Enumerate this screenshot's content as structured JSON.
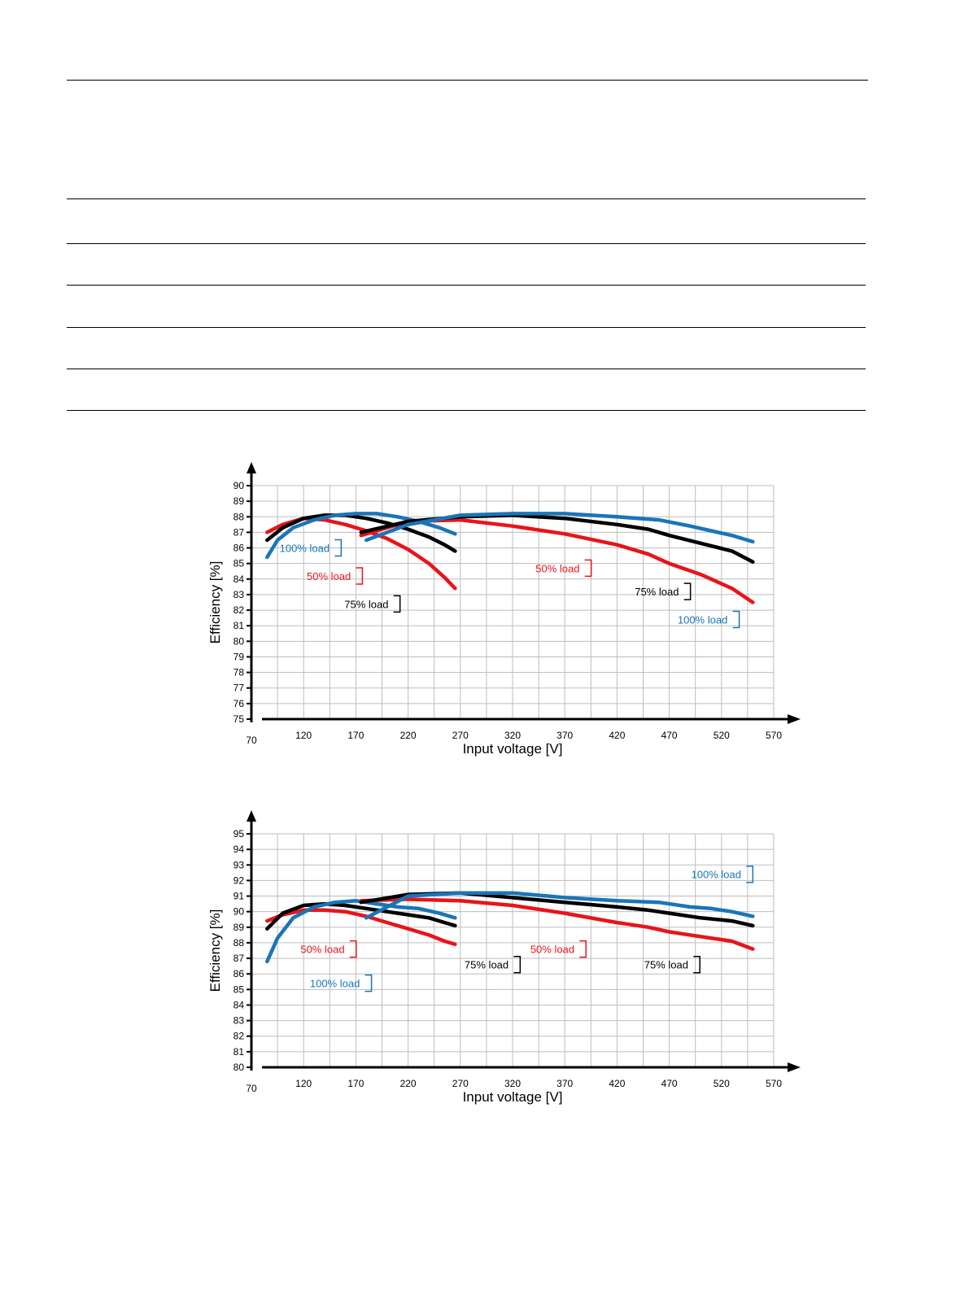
{
  "chart_data": [
    {
      "type": "line",
      "title": "",
      "xlabel": "Input voltage [V]",
      "ylabel": "Efficiency [%]",
      "xlim": [
        70,
        570
      ],
      "ylim": [
        75,
        90
      ],
      "x_ticks": [
        70,
        120,
        170,
        220,
        270,
        320,
        370,
        420,
        470,
        520,
        570
      ],
      "y_ticks": [
        75,
        76,
        77,
        78,
        79,
        80,
        81,
        82,
        83,
        84,
        85,
        86,
        87,
        88,
        89,
        90
      ],
      "grid": true,
      "colors": {
        "red": "#e8141b",
        "black": "#000000",
        "blue": "#1a75b8"
      },
      "series": [
        {
          "color": "red",
          "x": [
            85,
            100,
            120,
            140,
            160,
            180,
            200,
            220,
            240,
            255,
            265
          ],
          "y": [
            87.0,
            87.5,
            87.9,
            87.8,
            87.5,
            87.1,
            86.6,
            85.9,
            85.0,
            84.1,
            83.4
          ]
        },
        {
          "color": "black",
          "x": [
            85,
            100,
            120,
            140,
            160,
            180,
            200,
            220,
            240,
            255,
            265
          ],
          "y": [
            86.5,
            87.3,
            87.9,
            88.1,
            88.1,
            87.9,
            87.6,
            87.2,
            86.7,
            86.2,
            85.8
          ]
        },
        {
          "color": "blue",
          "x": [
            85,
            95,
            110,
            130,
            150,
            170,
            190,
            210,
            230,
            250,
            265
          ],
          "y": [
            85.4,
            86.5,
            87.3,
            87.8,
            88.1,
            88.2,
            88.2,
            88.0,
            87.7,
            87.3,
            86.9
          ]
        },
        {
          "color": "red",
          "x": [
            175,
            220,
            270,
            320,
            370,
            420,
            450,
            470,
            500,
            530,
            550
          ],
          "y": [
            86.8,
            87.7,
            87.8,
            87.4,
            86.9,
            86.2,
            85.6,
            85.0,
            84.3,
            83.4,
            82.5
          ]
        },
        {
          "color": "black",
          "x": [
            175,
            220,
            270,
            320,
            370,
            420,
            450,
            470,
            500,
            530,
            550
          ],
          "y": [
            87.0,
            87.7,
            88.0,
            88.1,
            87.9,
            87.5,
            87.2,
            86.8,
            86.3,
            85.8,
            85.1
          ]
        },
        {
          "color": "blue",
          "x": [
            180,
            220,
            270,
            320,
            370,
            420,
            460,
            490,
            510,
            530,
            550
          ],
          "y": [
            86.5,
            87.5,
            88.1,
            88.2,
            88.2,
            88.0,
            87.8,
            87.4,
            87.1,
            86.8,
            86.4
          ]
        }
      ],
      "annotations": [
        {
          "text": "100% load",
          "color": "blue",
          "x": 97,
          "y": 86.0
        },
        {
          "text": "50% load",
          "color": "red",
          "x": 123,
          "y": 84.2
        },
        {
          "text": "75% load",
          "color": "black",
          "x": 159,
          "y": 82.4
        },
        {
          "text": "50% load",
          "color": "red",
          "x": 342,
          "y": 84.7
        },
        {
          "text": "75% load",
          "color": "black",
          "x": 437,
          "y": 83.2
        },
        {
          "text": "100% load",
          "color": "blue",
          "x": 478,
          "y": 81.4
        }
      ]
    },
    {
      "type": "line",
      "title": "",
      "xlabel": "Input voltage [V]",
      "ylabel": "Efficiency [%]",
      "xlim": [
        70,
        570
      ],
      "ylim": [
        80,
        95
      ],
      "x_ticks": [
        70,
        120,
        170,
        220,
        270,
        320,
        370,
        420,
        470,
        520,
        570
      ],
      "y_ticks": [
        80,
        81,
        82,
        83,
        84,
        85,
        86,
        87,
        88,
        89,
        90,
        91,
        92,
        93,
        94,
        95
      ],
      "grid": true,
      "colors": {
        "red": "#e8141b",
        "black": "#000000",
        "blue": "#1a75b8"
      },
      "series": [
        {
          "color": "red",
          "x": [
            85,
            100,
            120,
            140,
            160,
            180,
            200,
            220,
            240,
            255,
            265
          ],
          "y": [
            89.4,
            89.8,
            90.1,
            90.1,
            90.0,
            89.7,
            89.3,
            88.9,
            88.5,
            88.1,
            87.9
          ]
        },
        {
          "color": "black",
          "x": [
            85,
            100,
            120,
            140,
            160,
            180,
            200,
            220,
            240,
            255,
            265
          ],
          "y": [
            88.9,
            89.9,
            90.4,
            90.5,
            90.4,
            90.2,
            90.0,
            89.8,
            89.6,
            89.3,
            89.1
          ]
        },
        {
          "color": "blue",
          "x": [
            85,
            95,
            110,
            130,
            150,
            170,
            190,
            210,
            230,
            250,
            265
          ],
          "y": [
            86.8,
            88.3,
            89.6,
            90.3,
            90.6,
            90.7,
            90.5,
            90.3,
            90.2,
            89.9,
            89.6
          ]
        },
        {
          "color": "red",
          "x": [
            175,
            220,
            270,
            320,
            370,
            420,
            450,
            470,
            500,
            530,
            550
          ],
          "y": [
            90.7,
            90.8,
            90.7,
            90.4,
            89.9,
            89.3,
            89.0,
            88.7,
            88.4,
            88.1,
            87.6
          ]
        },
        {
          "color": "black",
          "x": [
            175,
            220,
            270,
            320,
            370,
            420,
            450,
            470,
            500,
            530,
            550
          ],
          "y": [
            90.6,
            91.1,
            91.2,
            90.9,
            90.6,
            90.3,
            90.1,
            89.9,
            89.6,
            89.4,
            89.1
          ]
        },
        {
          "color": "blue",
          "x": [
            180,
            220,
            270,
            320,
            370,
            420,
            460,
            490,
            510,
            530,
            550
          ],
          "y": [
            89.6,
            91.0,
            91.2,
            91.2,
            90.9,
            90.7,
            90.6,
            90.3,
            90.2,
            90.0,
            89.7
          ]
        }
      ],
      "annotations": [
        {
          "text": "50% load",
          "color": "red",
          "x": 117,
          "y": 87.6
        },
        {
          "text": "100% load",
          "color": "blue",
          "x": 126,
          "y": 85.4
        },
        {
          "text": "75% load",
          "color": "black",
          "x": 274,
          "y": 86.6
        },
        {
          "text": "50% load",
          "color": "red",
          "x": 337,
          "y": 87.6
        },
        {
          "text": "75% load",
          "color": "black",
          "x": 446,
          "y": 86.6
        },
        {
          "text": "100% load",
          "color": "blue",
          "x": 491,
          "y": 92.4
        }
      ]
    }
  ]
}
